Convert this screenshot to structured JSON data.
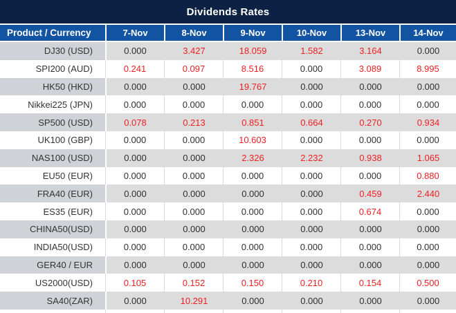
{
  "title": "Dividends Rates",
  "colors": {
    "title_bar_bg": "#0c2143",
    "header_bg": "#1254a2",
    "row_gray_bg": "#dcdcdc",
    "product_gray_bg": "#cfd2d7",
    "row_white_bg": "#ffffff",
    "highlight_red": "#f01e23",
    "text_dark": "#2f2f2f"
  },
  "table": {
    "product_header": "Product / Currency",
    "date_headers": [
      "7-Nov",
      "8-Nov",
      "9-Nov",
      "10-Nov",
      "13-Nov",
      "14-Nov"
    ],
    "rows": [
      {
        "product": "DJ30 (USD)",
        "values": [
          "0.000",
          "3.427",
          "18.059",
          "1.582",
          "3.164",
          "0.000"
        ],
        "highlighted": [
          0,
          1,
          1,
          1,
          1,
          0
        ]
      },
      {
        "product": "SPI200 (AUD)",
        "values": [
          "0.241",
          "0.097",
          "8.516",
          "0.000",
          "3.089",
          "8.995"
        ],
        "highlighted": [
          1,
          1,
          1,
          0,
          1,
          1
        ]
      },
      {
        "product": "HK50 (HKD)",
        "values": [
          "0.000",
          "0.000",
          "19.767",
          "0.000",
          "0.000",
          "0.000"
        ],
        "highlighted": [
          0,
          0,
          1,
          0,
          0,
          0
        ]
      },
      {
        "product": "Nikkei225 (JPN)",
        "values": [
          "0.000",
          "0.000",
          "0.000",
          "0.000",
          "0.000",
          "0.000"
        ],
        "highlighted": [
          0,
          0,
          0,
          0,
          0,
          0
        ]
      },
      {
        "product": "SP500 (USD)",
        "values": [
          "0.078",
          "0.213",
          "0.851",
          "0.664",
          "0.270",
          "0.934"
        ],
        "highlighted": [
          1,
          1,
          1,
          1,
          1,
          1
        ]
      },
      {
        "product": "UK100 (GBP)",
        "values": [
          "0.000",
          "0.000",
          "10.603",
          "0.000",
          "0.000",
          "0.000"
        ],
        "highlighted": [
          0,
          0,
          1,
          0,
          0,
          0
        ]
      },
      {
        "product": "NAS100 (USD)",
        "values": [
          "0.000",
          "0.000",
          "2.326",
          "2.232",
          "0.938",
          "1.065"
        ],
        "highlighted": [
          0,
          0,
          1,
          1,
          1,
          1
        ]
      },
      {
        "product": "EU50 (EUR)",
        "values": [
          "0.000",
          "0.000",
          "0.000",
          "0.000",
          "0.000",
          "0.880"
        ],
        "highlighted": [
          0,
          0,
          0,
          0,
          0,
          1
        ]
      },
      {
        "product": "FRA40 (EUR)",
        "values": [
          "0.000",
          "0.000",
          "0.000",
          "0.000",
          "0.459",
          "2.440"
        ],
        "highlighted": [
          0,
          0,
          0,
          0,
          1,
          1
        ]
      },
      {
        "product": "ES35 (EUR)",
        "values": [
          "0.000",
          "0.000",
          "0.000",
          "0.000",
          "0.674",
          "0.000"
        ],
        "highlighted": [
          0,
          0,
          0,
          0,
          1,
          0
        ]
      },
      {
        "product": "CHINA50(USD)",
        "values": [
          "0.000",
          "0.000",
          "0.000",
          "0.000",
          "0.000",
          "0.000"
        ],
        "highlighted": [
          0,
          0,
          0,
          0,
          0,
          0
        ]
      },
      {
        "product": "INDIA50(USD)",
        "values": [
          "0.000",
          "0.000",
          "0.000",
          "0.000",
          "0.000",
          "0.000"
        ],
        "highlighted": [
          0,
          0,
          0,
          0,
          0,
          0
        ]
      },
      {
        "product": "GER40 / EUR",
        "values": [
          "0.000",
          "0.000",
          "0.000",
          "0.000",
          "0.000",
          "0.000"
        ],
        "highlighted": [
          0,
          0,
          0,
          0,
          0,
          0
        ]
      },
      {
        "product": "US2000(USD)",
        "values": [
          "0.105",
          "0.152",
          "0.150",
          "0.210",
          "0.154",
          "0.500"
        ],
        "highlighted": [
          1,
          1,
          1,
          1,
          1,
          1
        ]
      },
      {
        "product": "SA40(ZAR)",
        "values": [
          "0.000",
          "10.291",
          "0.000",
          "0.000",
          "0.000",
          "0.000"
        ],
        "highlighted": [
          0,
          1,
          0,
          0,
          0,
          0
        ]
      }
    ]
  }
}
